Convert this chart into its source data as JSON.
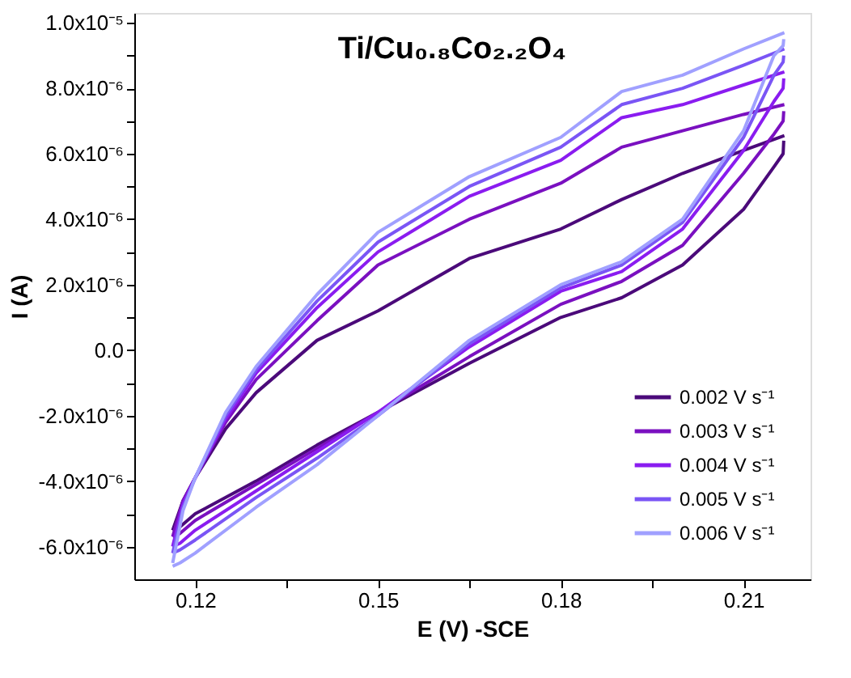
{
  "chart_data": {
    "type": "line",
    "title": "Ti/Cu₀.₈Co₂.₂O₄",
    "xlabel": "E (V) -SCE",
    "ylabel": "I (A)",
    "xlim": [
      0.11,
      0.221
    ],
    "ylim": [
      -7e-06,
      1.03e-05
    ],
    "xticks": [
      0.12,
      {
        "value": 0.135,
        "label": null
      },
      0.15,
      {
        "value": 0.165,
        "label": null
      },
      0.18,
      {
        "value": 0.195,
        "label": null
      },
      0.21
    ],
    "yticks": [
      {
        "value": -6e-06,
        "label": "-6.0x10⁻⁶"
      },
      {
        "value": -5e-06,
        "label": null
      },
      {
        "value": -4e-06,
        "label": "-4.0x10⁻⁶"
      },
      {
        "value": -3e-06,
        "label": null
      },
      {
        "value": -2e-06,
        "label": "-2.0x10⁻⁶"
      },
      {
        "value": -1e-06,
        "label": null
      },
      {
        "value": 0,
        "label": "0.0"
      },
      {
        "value": 1e-06,
        "label": null
      },
      {
        "value": 2e-06,
        "label": "2.0x10⁻⁶"
      },
      {
        "value": 3e-06,
        "label": null
      },
      {
        "value": 4e-06,
        "label": "4.0x10⁻⁶"
      },
      {
        "value": 5e-06,
        "label": null
      },
      {
        "value": 6e-06,
        "label": "6.0x10⁻⁶"
      },
      {
        "value": 7e-06,
        "label": null
      },
      {
        "value": 8e-06,
        "label": "8.0x10⁻⁶"
      },
      {
        "value": 9e-06,
        "label": null
      },
      {
        "value": 1e-05,
        "label": "1.0x10⁻⁵"
      }
    ],
    "grid": false,
    "legend": "bottom right",
    "marker": "none",
    "line_style": "solid",
    "series": [
      {
        "name": "0.002 V s⁻¹",
        "color": "#4b0a7a",
        "x": [
          0.1163,
          0.118,
          0.12,
          0.125,
          0.13,
          0.14,
          0.15,
          0.165,
          0.18,
          0.19,
          0.2,
          0.21,
          0.2167
        ],
        "values": [
          -5.5e-06,
          -4.6e-06,
          -3.9e-06,
          -2.4e-06,
          -1.3e-06,
          3e-07,
          1.2e-06,
          2.8e-06,
          3.7e-06,
          4.6e-06,
          5.4e-06,
          6.1e-06,
          6.55e-06
        ]
      },
      {
        "color": "#4b0a7a",
        "x": [
          0.1163,
          0.1175,
          0.12,
          0.13,
          0.14,
          0.15,
          0.165,
          0.18,
          0.19,
          0.2,
          0.21,
          0.215,
          0.2165,
          0.2166
        ],
        "values": [
          -5.5e-06,
          -5.4e-06,
          -5e-06,
          -4e-06,
          -2.9e-06,
          -1.9e-06,
          -4e-07,
          1e-06,
          1.6e-06,
          2.6e-06,
          4.3e-06,
          5.6e-06,
          6e-06,
          6.4e-06
        ]
      },
      {
        "name": "0.003 V s⁻¹",
        "color": "#7a10c0",
        "x": [
          0.1163,
          0.118,
          0.12,
          0.125,
          0.13,
          0.14,
          0.15,
          0.165,
          0.18,
          0.19,
          0.2,
          0.21,
          0.2167
        ],
        "values": [
          -5.7e-06,
          -4.6e-06,
          -3.9e-06,
          -2.2e-06,
          -9e-07,
          9e-07,
          2.6e-06,
          4e-06,
          5.1e-06,
          6.2e-06,
          6.7e-06,
          7.2e-06,
          7.5e-06
        ]
      },
      {
        "color": "#7a10c0",
        "x": [
          0.1163,
          0.1175,
          0.12,
          0.13,
          0.14,
          0.15,
          0.165,
          0.18,
          0.19,
          0.2,
          0.21,
          0.215,
          0.2165,
          0.2166
        ],
        "values": [
          -5.7e-06,
          -5.6e-06,
          -5.2e-06,
          -4.1e-06,
          -3e-06,
          -1.9e-06,
          -2e-07,
          1.4e-06,
          2.1e-06,
          3.2e-06,
          5.4e-06,
          6.6e-06,
          7e-06,
          7.3e-06
        ]
      },
      {
        "name": "0.004 V s⁻¹",
        "color": "#8a1cf0",
        "x": [
          0.1163,
          0.118,
          0.12,
          0.125,
          0.13,
          0.14,
          0.15,
          0.165,
          0.18,
          0.19,
          0.2,
          0.21,
          0.2167
        ],
        "values": [
          -6e-06,
          -4.7e-06,
          -3.9e-06,
          -2.1e-06,
          -7e-07,
          1.3e-06,
          3e-06,
          4.7e-06,
          5.8e-06,
          7.1e-06,
          7.5e-06,
          8.1e-06,
          8.5e-06
        ]
      },
      {
        "color": "#8a1cf0",
        "x": [
          0.1163,
          0.1175,
          0.12,
          0.13,
          0.14,
          0.15,
          0.165,
          0.18,
          0.19,
          0.2,
          0.21,
          0.215,
          0.2165,
          0.2166
        ],
        "values": [
          -6e-06,
          -5.9e-06,
          -5.5e-06,
          -4.3e-06,
          -3.1e-06,
          -1.9e-06,
          1e-07,
          1.8e-06,
          2.4e-06,
          3.7e-06,
          6.1e-06,
          7.6e-06,
          8e-06,
          8.3e-06
        ]
      },
      {
        "name": "0.005 V s⁻¹",
        "color": "#7a55f5",
        "x": [
          0.1163,
          0.118,
          0.12,
          0.125,
          0.13,
          0.14,
          0.15,
          0.165,
          0.18,
          0.19,
          0.2,
          0.21,
          0.2167
        ],
        "values": [
          -6.2e-06,
          -4.8e-06,
          -3.9e-06,
          -2e-06,
          -6e-07,
          1.5e-06,
          3.3e-06,
          5e-06,
          6.2e-06,
          7.5e-06,
          8e-06,
          8.7e-06,
          9.2e-06
        ]
      },
      {
        "color": "#7a55f5",
        "x": [
          0.1163,
          0.1175,
          0.12,
          0.13,
          0.14,
          0.15,
          0.165,
          0.18,
          0.19,
          0.2,
          0.21,
          0.215,
          0.2165,
          0.2166
        ],
        "values": [
          -6.2e-06,
          -6.1e-06,
          -5.8e-06,
          -4.5e-06,
          -3.3e-06,
          -2e-06,
          2e-07,
          1.9e-06,
          2.6e-06,
          3.9e-06,
          6.5e-06,
          8.4e-06,
          8.8e-06,
          9e-06
        ]
      },
      {
        "name": "0.006 V s⁻¹",
        "color": "#a0a0ff",
        "x": [
          0.1163,
          0.118,
          0.12,
          0.125,
          0.13,
          0.14,
          0.15,
          0.165,
          0.18,
          0.19,
          0.2,
          0.21,
          0.2167
        ],
        "values": [
          -6.5e-06,
          -4.9e-06,
          -3.9e-06,
          -1.9e-06,
          -5e-07,
          1.7e-06,
          3.6e-06,
          5.3e-06,
          6.5e-06,
          7.9e-06,
          8.4e-06,
          9.2e-06,
          9.7e-06
        ]
      },
      {
        "color": "#a0a0ff",
        "x": [
          0.1163,
          0.1175,
          0.12,
          0.13,
          0.14,
          0.15,
          0.165,
          0.18,
          0.19,
          0.2,
          0.21,
          0.215,
          0.2165,
          0.2166
        ],
        "values": [
          -6.6e-06,
          -6.5e-06,
          -6.2e-06,
          -4.8e-06,
          -3.5e-06,
          -2e-06,
          3e-07,
          2e-06,
          2.7e-06,
          4e-06,
          6.7e-06,
          9e-06,
          9.3e-06,
          9.5e-06
        ]
      }
    ]
  }
}
